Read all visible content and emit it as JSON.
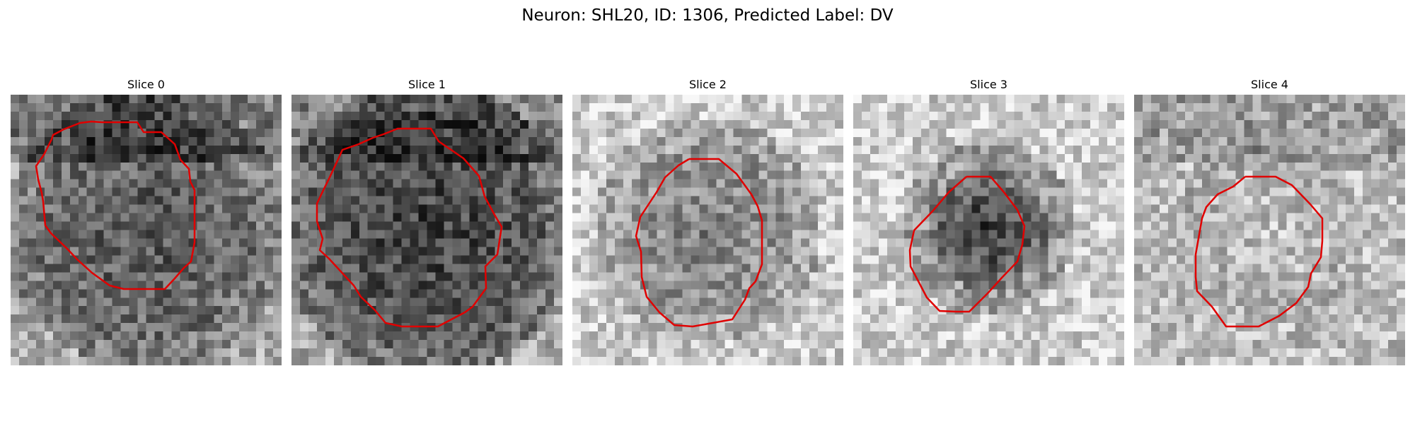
{
  "figure": {
    "title": "Neuron: SHL20, ID: 1306, Predicted Label: DV"
  },
  "panels": [
    {
      "title": "Slice 0",
      "texture": {
        "seed": 11,
        "base": 0.55,
        "dark_center": 0.22,
        "dark_radius": 0.42,
        "bright_edge": 0.12,
        "dark_top": 0.25
      },
      "contour_color": "#e00000"
    },
    {
      "title": "Slice 1",
      "texture": {
        "seed": 23,
        "base": 0.52,
        "dark_center": 0.28,
        "dark_radius": 0.45,
        "bright_edge": 0.15,
        "dark_top": 0.2
      },
      "contour_color": "#e00000"
    },
    {
      "title": "Slice 2",
      "texture": {
        "seed": 37,
        "base": 0.7,
        "dark_center": 0.2,
        "dark_radius": 0.32,
        "bright_edge": 0.1,
        "dark_top": 0.0
      },
      "contour_color": "#e00000"
    },
    {
      "title": "Slice 3",
      "texture": {
        "seed": 41,
        "base": 0.75,
        "dark_center": 0.55,
        "dark_radius": 0.22,
        "bright_edge": 0.05,
        "dark_top": 0.0
      },
      "contour_color": "#e00000"
    },
    {
      "title": "Slice 4",
      "texture": {
        "seed": 53,
        "base": 0.66,
        "dark_center": -0.1,
        "dark_radius": 0.25,
        "bright_edge": 0.08,
        "dark_top": 0.15
      },
      "contour_color": "#e00000"
    }
  ]
}
